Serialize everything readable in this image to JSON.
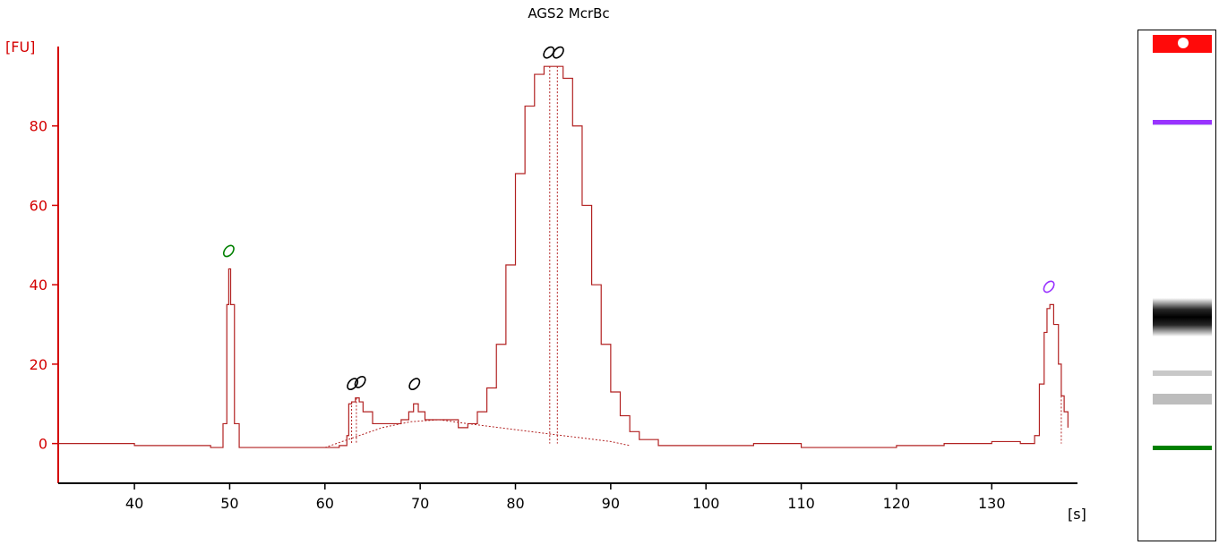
{
  "colors": {
    "axis": "#d40000",
    "trace": "#b22222",
    "lower_marker": "#008000",
    "upper_marker": "#9933ff",
    "peak_marker": "#000000",
    "gel_top": "#ff0a0a"
  },
  "chart_data": {
    "type": "line",
    "title": "AGS2 McrBc",
    "ylabel": "[FU]",
    "xlabel": "[s]",
    "xlim": [
      32,
      139
    ],
    "ylim": [
      -10,
      100
    ],
    "x_ticks": [
      40,
      50,
      60,
      70,
      80,
      90,
      100,
      110,
      120,
      130
    ],
    "x_tick_labels": [
      "40",
      "50",
      "60",
      "70",
      "80",
      "90",
      "100",
      "110",
      "120",
      "130"
    ],
    "y_ticks": [
      0,
      20,
      40,
      60,
      80
    ],
    "y_tick_labels": [
      "0",
      "20",
      "40",
      "60",
      "80"
    ],
    "grid": false,
    "series": [
      {
        "x": [
          32,
          40,
          48,
          49.3,
          49.7,
          49.9,
          50.1,
          50.5,
          51,
          55,
          60,
          61.5,
          62.3,
          62.5,
          62.8,
          63.2,
          63.6,
          64,
          65,
          66,
          67,
          68,
          68.8,
          69.3,
          69.8,
          70.5,
          72,
          73,
          74,
          75,
          76,
          77,
          78,
          79,
          80,
          81,
          82,
          83,
          83.8,
          84.5,
          85,
          86,
          87,
          88,
          89,
          90,
          91,
          92,
          93,
          95,
          100,
          105,
          110,
          120,
          125,
          130,
          133,
          134.5,
          135,
          135.5,
          135.8,
          136.1,
          136.5,
          137,
          137.3,
          137.6,
          138
        ],
        "y": [
          0,
          -0.5,
          -1,
          5,
          35,
          44,
          35,
          5,
          -1,
          -1,
          -1,
          -0.5,
          2,
          10,
          10.5,
          11.5,
          10.5,
          8,
          5,
          5,
          5,
          6,
          8,
          10,
          8,
          6,
          6,
          6,
          4,
          5,
          8,
          14,
          25,
          45,
          68,
          85,
          93,
          95,
          95,
          95,
          92,
          80,
          60,
          40,
          25,
          13,
          7,
          3,
          1,
          -0.5,
          -0.5,
          0,
          -1,
          -0.5,
          0,
          0.5,
          0,
          2,
          15,
          28,
          34,
          35,
          30,
          20,
          12,
          8,
          4
        ]
      }
    ],
    "baseline": {
      "x": [
        60,
        63,
        66,
        69,
        72,
        75,
        80,
        85,
        90,
        92
      ],
      "y": [
        -1,
        1.5,
        4,
        5.5,
        6,
        5,
        3.5,
        2,
        0.5,
        -0.5
      ]
    },
    "peak_lines": [
      {
        "x": 62.8,
        "y": 10.5
      },
      {
        "x": 63.3,
        "y": 11.5
      },
      {
        "x": 83.6,
        "y": 95
      },
      {
        "x": 84.4,
        "y": 95
      },
      {
        "x": 137.3,
        "y": 12
      }
    ],
    "markers": [
      {
        "x": 49.9,
        "y": 48.5,
        "kind": "lower"
      },
      {
        "x": 62.9,
        "y": 15,
        "kind": "peak"
      },
      {
        "x": 63.7,
        "y": 15.5,
        "kind": "peak"
      },
      {
        "x": 69.4,
        "y": 15,
        "kind": "peak"
      },
      {
        "x": 83.5,
        "y": 98.5,
        "kind": "peak"
      },
      {
        "x": 84.5,
        "y": 98.5,
        "kind": "peak"
      },
      {
        "x": 136,
        "y": 39.5,
        "kind": "upper"
      }
    ]
  },
  "gel": {
    "bands": [
      {
        "center": 0.18,
        "height": 0.012,
        "color": "#ccc0ee"
      },
      {
        "center": 0.179,
        "height": 0.009,
        "color": "#9933ff"
      },
      {
        "center": 0.56,
        "height": 0.075,
        "color": "#000000"
      },
      {
        "center": 0.67,
        "height": 0.01,
        "color": "#c8c8c8"
      },
      {
        "center": 0.72,
        "height": 0.02,
        "color": "#bdbdbd"
      },
      {
        "center": 0.815,
        "height": 0.009,
        "color": "#008000"
      }
    ]
  }
}
